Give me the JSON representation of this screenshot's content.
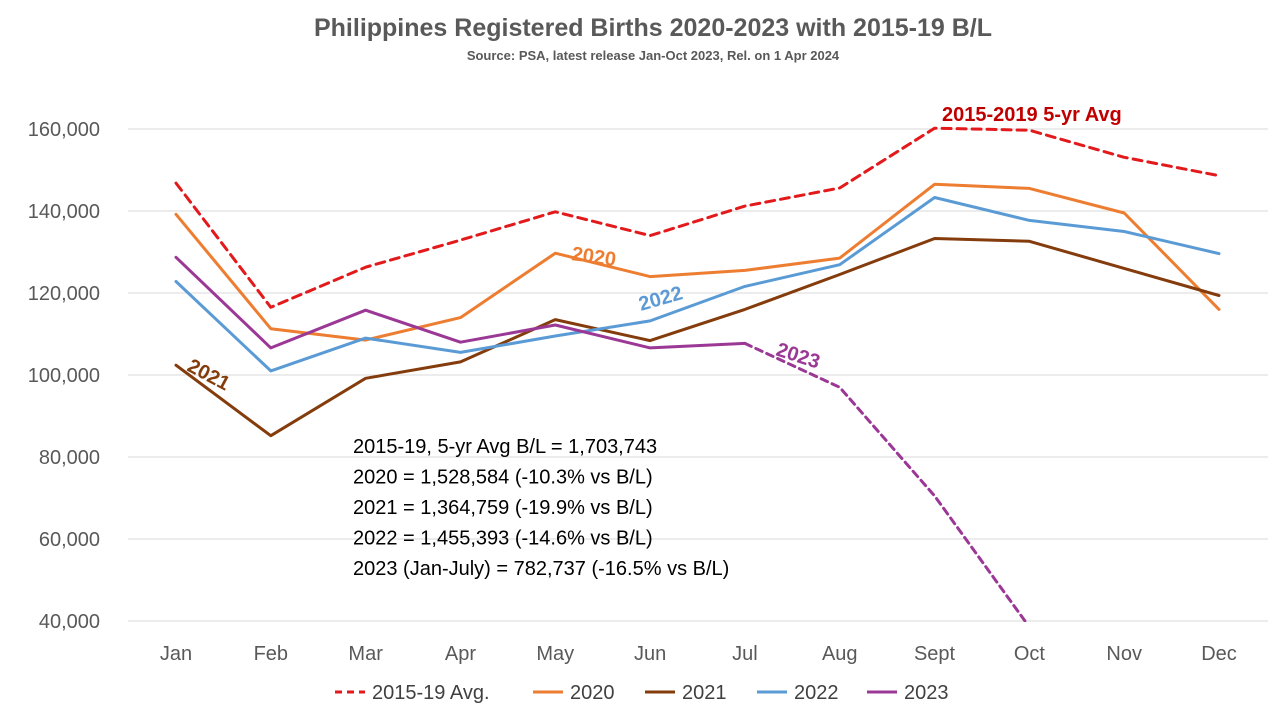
{
  "chart_data": {
    "type": "line",
    "title": "Philippines Registered Births 2020-2023  with 2015-19 B/L",
    "subtitle": "Source: PSA, latest release Jan-Oct 2023, Rel. on 1 Apr 2024",
    "xlabel": "",
    "ylabel": "",
    "ylim": [
      40000,
      165000
    ],
    "y_ticks": [
      40000,
      60000,
      80000,
      100000,
      120000,
      140000,
      160000
    ],
    "y_tick_labels": [
      "40,000",
      "60,000",
      "80,000",
      "100,000",
      "120,000",
      "140,000",
      "160,000"
    ],
    "grid": true,
    "legend_position": "bottom",
    "categories": [
      "Jan",
      "Feb",
      "Mar",
      "Apr",
      "May",
      "Jun",
      "Jul",
      "Aug",
      "Sept",
      "Oct",
      "Nov",
      "Dec"
    ],
    "series": [
      {
        "name": "2015-19 Avg.",
        "label": "2015-2019 5-yr Avg",
        "color": "#e31a1c",
        "label_color": "#c00000",
        "dashed": true,
        "values": [
          146800,
          116500,
          126300,
          132900,
          139800,
          134000,
          141200,
          145600,
          160200,
          159700,
          153100,
          148600
        ]
      },
      {
        "name": "2020",
        "label": "2020",
        "color": "#ed7d31",
        "label_color": "#ed7d31",
        "dashed": false,
        "values": [
          139200,
          111300,
          108500,
          114000,
          129700,
          124000,
          125500,
          128500,
          146500,
          145500,
          139500,
          116000
        ]
      },
      {
        "name": "2021",
        "label": "2021",
        "color": "#843c0c",
        "label_color": "#843c0c",
        "dashed": false,
        "values": [
          102400,
          85200,
          99200,
          103200,
          113500,
          108400,
          116000,
          124500,
          133300,
          132600,
          126000,
          119400
        ]
      },
      {
        "name": "2022",
        "label": "2022",
        "color": "#5b9bd5",
        "label_color": "#5b9bd5",
        "dashed": false,
        "values": [
          122800,
          101000,
          109000,
          105500,
          109500,
          113200,
          121600,
          126900,
          143300,
          137700,
          135000,
          129600
        ]
      },
      {
        "name": "2023",
        "label": "2023",
        "color": "#9b3896",
        "label_color": "#9b3896",
        "dashed": false,
        "values": [
          128700,
          106600,
          115800,
          108000,
          112200,
          106600,
          107700,
          null,
          null,
          null,
          null,
          null
        ],
        "provisional_values": [
          null,
          null,
          null,
          null,
          null,
          null,
          107700,
          97000,
          70500,
          38500,
          null,
          null
        ]
      }
    ],
    "annotation_lines": [
      "2015-19,  5-yr Avg B/L = 1,703,743",
      "2020 = 1,528,584  (-10.3% vs B/L)",
      "2021 = 1,364,759  (-19.9% vs B/L)",
      "2022 = 1,455,393  (-14.6% vs B/L)",
      "2023 (Jan-July)  =  782,737  (-16.5% vs B/L)"
    ]
  }
}
